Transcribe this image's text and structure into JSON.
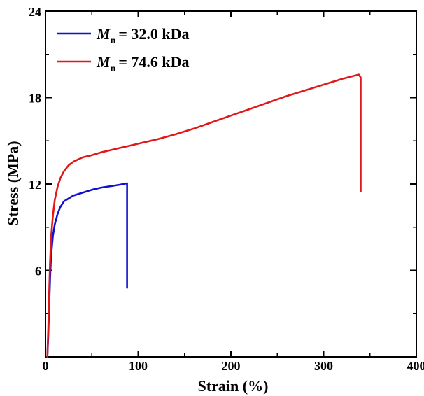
{
  "chart_data": {
    "type": "line",
    "title": "",
    "xlabel": "Strain (%)",
    "ylabel": "Stress (MPa)",
    "xlim": [
      0,
      400
    ],
    "ylim": [
      0,
      24
    ],
    "xticks": [
      "0",
      "100",
      "200",
      "300",
      "400"
    ],
    "yticks": [
      "6",
      "12",
      "18",
      "24"
    ],
    "grid": false,
    "legend_position": "top-left",
    "series": [
      {
        "name_symbol": "M",
        "name_subscript": "n",
        "name_value": "= 32.0 kDa",
        "color": "#1010d0",
        "points": [
          [
            2,
            0.0
          ],
          [
            3,
            1.5
          ],
          [
            4,
            3.5
          ],
          [
            5,
            5.5
          ],
          [
            6,
            7.0
          ],
          [
            8,
            8.4
          ],
          [
            10,
            9.2
          ],
          [
            13,
            9.9
          ],
          [
            16,
            10.4
          ],
          [
            20,
            10.8
          ],
          [
            25,
            11.0
          ],
          [
            30,
            11.2
          ],
          [
            40,
            11.4
          ],
          [
            50,
            11.6
          ],
          [
            60,
            11.75
          ],
          [
            70,
            11.85
          ],
          [
            80,
            11.95
          ],
          [
            88,
            12.05
          ],
          [
            88,
            11.6
          ],
          [
            88,
            4.8
          ]
        ]
      },
      {
        "name_symbol": "M",
        "name_subscript": "n",
        "name_value": "= 74.6 kDa",
        "color": "#e01818",
        "points": [
          [
            2,
            0.0
          ],
          [
            3,
            2.0
          ],
          [
            4,
            4.5
          ],
          [
            5,
            6.6
          ],
          [
            6,
            8.3
          ],
          [
            8,
            9.8
          ],
          [
            10,
            10.9
          ],
          [
            13,
            11.8
          ],
          [
            16,
            12.4
          ],
          [
            20,
            12.9
          ],
          [
            25,
            13.3
          ],
          [
            30,
            13.55
          ],
          [
            40,
            13.85
          ],
          [
            50,
            14.0
          ],
          [
            60,
            14.2
          ],
          [
            70,
            14.35
          ],
          [
            80,
            14.5
          ],
          [
            90,
            14.65
          ],
          [
            100,
            14.8
          ],
          [
            120,
            15.1
          ],
          [
            140,
            15.45
          ],
          [
            160,
            15.85
          ],
          [
            180,
            16.3
          ],
          [
            200,
            16.75
          ],
          [
            220,
            17.2
          ],
          [
            240,
            17.65
          ],
          [
            260,
            18.1
          ],
          [
            280,
            18.5
          ],
          [
            300,
            18.9
          ],
          [
            320,
            19.3
          ],
          [
            338,
            19.6
          ],
          [
            340,
            19.4
          ],
          [
            340,
            11.5
          ]
        ]
      }
    ]
  }
}
